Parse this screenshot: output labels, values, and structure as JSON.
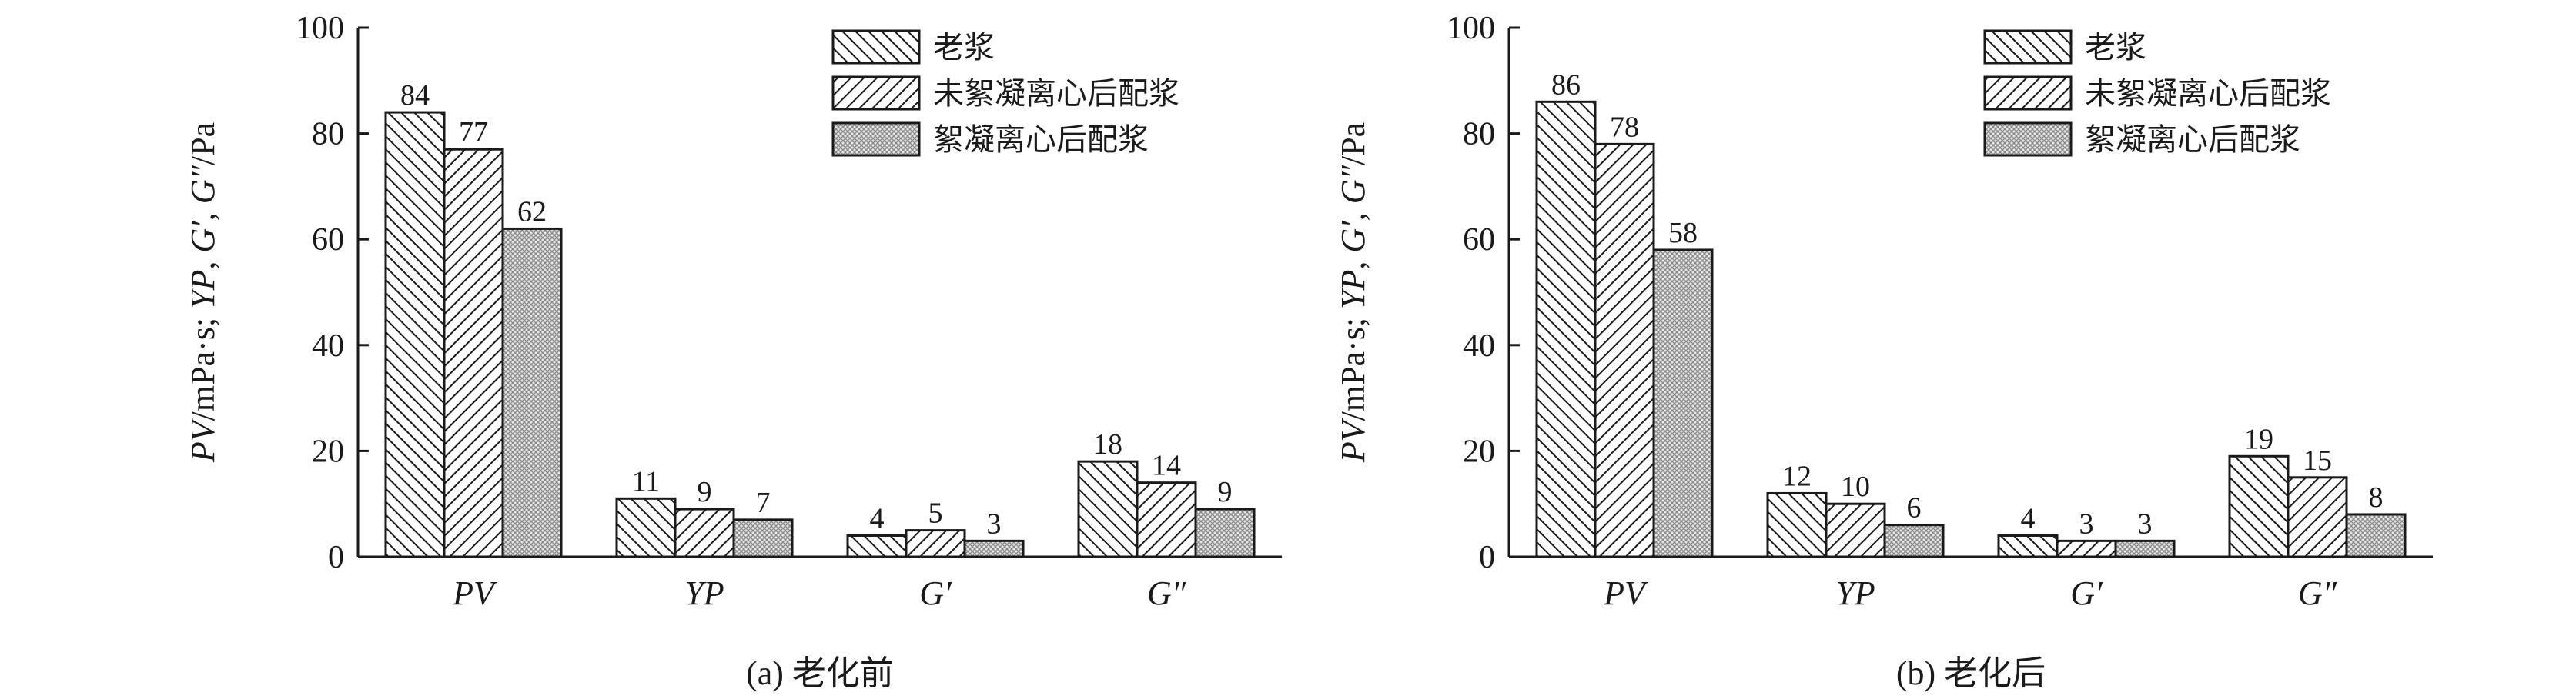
{
  "chart_data": [
    {
      "type": "bar",
      "caption": "(a) 老化前",
      "ylabel": "PV/mPa·s; YP, G′, G″/Pa",
      "ylim": [
        0,
        100
      ],
      "yticks": [
        0,
        20,
        40,
        60,
        80,
        100
      ],
      "categories": [
        "PV",
        "YP",
        "G′",
        "G″"
      ],
      "series": [
        {
          "name": "老浆",
          "values": [
            84,
            11,
            4,
            18
          ]
        },
        {
          "name": "未絮凝离心后配浆",
          "values": [
            77,
            9,
            5,
            14
          ]
        },
        {
          "name": "絮凝离心后配浆",
          "values": [
            62,
            7,
            3,
            9
          ]
        }
      ],
      "legend": "top-right",
      "grid": false
    },
    {
      "type": "bar",
      "caption": "(b) 老化后",
      "ylabel": "PV/mPa·s; YP, G′, G″/Pa",
      "ylim": [
        0,
        100
      ],
      "yticks": [
        0,
        20,
        40,
        60,
        80,
        100
      ],
      "categories": [
        "PV",
        "YP",
        "G′",
        "G″"
      ],
      "series": [
        {
          "name": "老浆",
          "values": [
            86,
            12,
            4,
            19
          ]
        },
        {
          "name": "未絮凝离心后配浆",
          "values": [
            78,
            10,
            3,
            15
          ]
        },
        {
          "name": "絮凝离心后配浆",
          "values": [
            58,
            6,
            3,
            8
          ]
        }
      ],
      "legend": "top-right",
      "grid": false
    }
  ],
  "patterns": [
    "hatch-forward",
    "hatch-backward",
    "crosshatch-dense"
  ],
  "colors": {
    "stroke": "#1a1a1a",
    "background": "#ffffff"
  }
}
